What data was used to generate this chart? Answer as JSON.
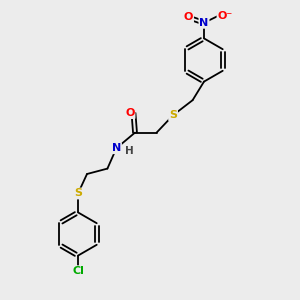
{
  "bg_color": "#ececec",
  "bond_color": "#000000",
  "atom_colors": {
    "O": "#ff0000",
    "N": "#0000cc",
    "S": "#ccaa00",
    "Cl": "#00aa00",
    "H": "#444444",
    "C": "#000000"
  },
  "font_size": 7.5,
  "line_width": 1.3,
  "fig_size": [
    3.0,
    3.0
  ],
  "dpi": 100,
  "xlim": [
    0,
    10
  ],
  "ylim": [
    0,
    10
  ]
}
